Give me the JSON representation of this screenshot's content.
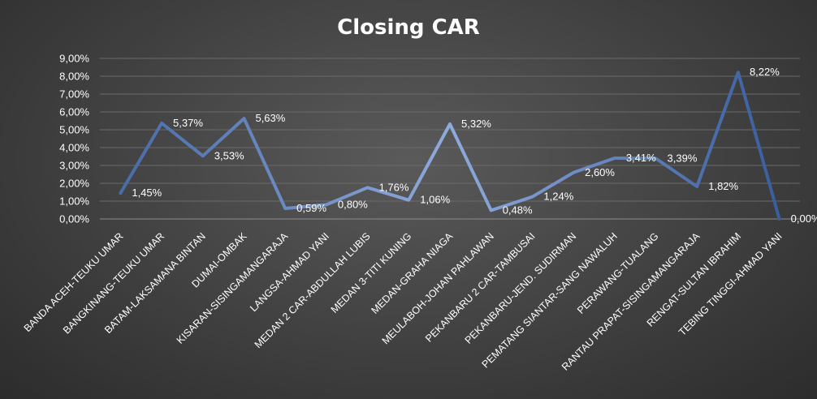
{
  "chart_data": {
    "type": "line",
    "title": "Closing CAR",
    "xlabel": "",
    "ylabel": "",
    "categories": [
      "BANDA ACEH-TEUKU UMAR",
      "BANGKINANG-TEUKU UMAR",
      "BATAM-LAKSAMANA BINTAN",
      "DUMAI-OMBAK",
      "KISARAN-SISINGAMANGARAJA",
      "LANGSA-AHMAD YANI",
      "MEDAN 2 CAR-ABDULLAH LUBIS",
      "MEDAN 3-TITI KUNING",
      "MEDAN-GRAHA NIAGA",
      "MEULABOH-JOHAN PAHLAWAN",
      "PEKANBARU 2 CAR-TAMBUSAI",
      "PEKANBARU-JEND. SUDIRMAN",
      "PEMATANG SIANTAR-SANG NAWALUH",
      "PERAWANG-TUALANG",
      "RANTAU PRAPAT-SISINGAMANGARAJA",
      "RENGAT-SULTAN IBRAHIM",
      "TEBING TINGGI-AHMAD YANI"
    ],
    "values": [
      1.45,
      5.37,
      3.53,
      5.63,
      0.59,
      0.8,
      1.76,
      1.06,
      5.32,
      0.48,
      1.24,
      2.6,
      3.41,
      3.39,
      1.82,
      8.22,
      0.0
    ],
    "data_labels": [
      "1,45%",
      "5,37%",
      "3,53%",
      "5,63%",
      "0,59%",
      "0,80%",
      "1,76%",
      "1,06%",
      "5,32%",
      "0,48%",
      "1,24%",
      "2,60%",
      "3,41%",
      "3,39%",
      "1,82%",
      "8,22%",
      "0,00%"
    ],
    "ylim": [
      0,
      9
    ],
    "y_ticks": [
      0,
      1,
      2,
      3,
      4,
      5,
      6,
      7,
      8,
      9
    ],
    "y_tick_labels": [
      "0,00%",
      "1,00%",
      "2,00%",
      "3,00%",
      "4,00%",
      "5,00%",
      "6,00%",
      "7,00%",
      "8,00%",
      "9,00%"
    ],
    "grid": true,
    "legend": "none",
    "colors": {
      "line_dark": "#2f5597",
      "line_light": "#8faadc",
      "background": "#404040",
      "text": "#ffffff",
      "grid": "#6a6a6a"
    }
  }
}
